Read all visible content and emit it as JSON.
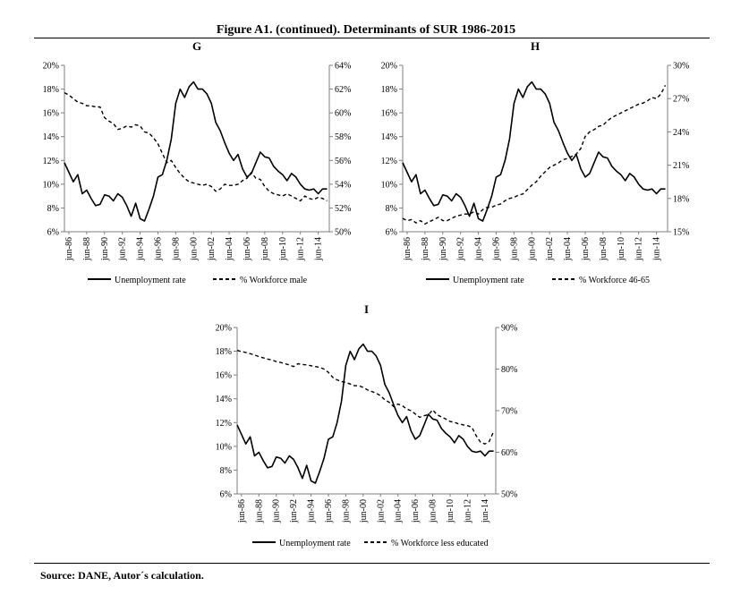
{
  "figure_title": "Figure A1. (continued). Determinants of SUR 1986-2015",
  "source": "Source: DANE, Autor´s calculation.",
  "colors": {
    "line": "#000000",
    "axis": "#7f7f7f",
    "background": "#ffffff"
  },
  "chart_data": [
    {
      "id": "G",
      "type": "line",
      "title": "G",
      "x_tick_labels": [
        "jun-86",
        "jun-88",
        "jun-90",
        "jun-92",
        "jun-94",
        "jun-96",
        "jun-98",
        "jun-00",
        "jun-02",
        "jun-04",
        "jun-06",
        "jun-08",
        "jun-10",
        "jun-12",
        "jun-14"
      ],
      "y_left": {
        "ylim": [
          6,
          20
        ],
        "ticks": [
          "6%",
          "8%",
          "10%",
          "12%",
          "14%",
          "16%",
          "18%",
          "20%"
        ]
      },
      "y_right": {
        "ylim": [
          50,
          64
        ],
        "ticks": [
          "50%",
          "52%",
          "54%",
          "56%",
          "58%",
          "60%",
          "62%",
          "64%"
        ]
      },
      "legend": [
        "Unemployment rate",
        "% Workforce male"
      ],
      "series": [
        {
          "name": "Unemployment rate",
          "axis": "left",
          "style": "solid",
          "x": [
            1986.0,
            1986.5,
            1987.0,
            1987.5,
            1988.0,
            1988.5,
            1989.0,
            1989.5,
            1990.0,
            1990.5,
            1991.0,
            1991.5,
            1992.0,
            1992.5,
            1993.0,
            1993.5,
            1994.0,
            1994.5,
            1995.0,
            1995.5,
            1996.0,
            1996.5,
            1997.0,
            1997.5,
            1998.0,
            1998.5,
            1999.0,
            1999.5,
            2000.0,
            2000.5,
            2001.0,
            2001.5,
            2002.0,
            2002.5,
            2003.0,
            2003.5,
            2004.0,
            2004.5,
            2005.0,
            2005.5,
            2006.0,
            2006.5,
            2007.0,
            2007.5,
            2008.0,
            2008.5,
            2009.0,
            2009.5,
            2010.0,
            2010.5,
            2011.0,
            2011.5,
            2012.0,
            2012.5,
            2013.0,
            2013.5,
            2014.0,
            2014.5,
            2015.0,
            2015.5
          ],
          "values": [
            11.8,
            11.0,
            10.2,
            10.8,
            9.2,
            9.5,
            8.8,
            8.2,
            8.3,
            9.1,
            9.0,
            8.6,
            9.2,
            8.9,
            8.2,
            7.3,
            8.4,
            7.1,
            6.9,
            7.9,
            9.0,
            10.6,
            10.8,
            12.0,
            13.8,
            16.8,
            18.0,
            17.3,
            18.2,
            18.6,
            18.0,
            18.0,
            17.6,
            16.8,
            15.2,
            14.5,
            13.5,
            12.6,
            12.0,
            12.5,
            11.3,
            10.6,
            10.9,
            11.8,
            12.7,
            12.3,
            12.2,
            11.5,
            11.1,
            10.8,
            10.3,
            10.9,
            10.6,
            10.0,
            9.6,
            9.5,
            9.6,
            9.2,
            9.6,
            9.6
          ]
        },
        {
          "name": "% Workforce male",
          "axis": "right",
          "style": "dashed",
          "x": [
            1986.0,
            1986.5,
            1987.0,
            1987.5,
            1988.0,
            1988.5,
            1989.0,
            1989.5,
            1990.0,
            1990.5,
            1991.0,
            1991.5,
            1992.0,
            1992.5,
            1993.0,
            1993.5,
            1994.0,
            1994.5,
            1995.0,
            1995.5,
            1996.0,
            1996.5,
            1997.0,
            1997.5,
            1998.0,
            1998.5,
            1999.0,
            1999.5,
            2000.0,
            2000.5,
            2001.0,
            2001.5,
            2002.0,
            2002.5,
            2003.0,
            2003.5,
            2004.0,
            2004.5,
            2005.0,
            2005.5,
            2006.0,
            2006.5,
            2007.0,
            2007.5,
            2008.0,
            2008.5,
            2009.0,
            2009.5,
            2010.0,
            2010.5,
            2011.0,
            2011.5,
            2012.0,
            2012.5,
            2013.0,
            2013.5,
            2014.0,
            2014.5,
            2015.0,
            2015.5
          ],
          "values": [
            61.7,
            61.5,
            61.2,
            60.9,
            60.8,
            60.6,
            60.6,
            60.5,
            60.5,
            59.6,
            59.3,
            59.1,
            58.6,
            58.7,
            58.9,
            58.8,
            59.0,
            58.9,
            58.4,
            58.3,
            57.9,
            57.4,
            56.6,
            55.8,
            56.0,
            55.4,
            54.9,
            54.5,
            54.2,
            54.1,
            54.0,
            53.9,
            54.0,
            53.8,
            53.4,
            53.6,
            54.0,
            53.9,
            53.9,
            54.0,
            54.3,
            54.5,
            55.0,
            54.5,
            54.4,
            53.8,
            53.4,
            53.2,
            53.1,
            53.0,
            53.2,
            53.0,
            52.8,
            52.6,
            53.0,
            52.8,
            52.7,
            52.9,
            52.8,
            52.6
          ]
        }
      ]
    },
    {
      "id": "H",
      "type": "line",
      "title": "H",
      "x_tick_labels": [
        "jun-86",
        "jun-88",
        "jun-90",
        "jun-92",
        "jun-94",
        "jun-96",
        "jun-98",
        "jun-00",
        "jun-02",
        "jun-04",
        "jun-06",
        "jun-08",
        "jun-10",
        "jun-12",
        "jun-14"
      ],
      "y_left": {
        "ylim": [
          6,
          20
        ],
        "ticks": [
          "6%",
          "8%",
          "10%",
          "12%",
          "14%",
          "16%",
          "18%",
          "20%"
        ]
      },
      "y_right": {
        "ylim": [
          15,
          30
        ],
        "ticks": [
          "15%",
          "18%",
          "21%",
          "24%",
          "27%",
          "30%"
        ]
      },
      "legend": [
        "Unemployment rate",
        "% Workforce 46-65"
      ],
      "series": [
        {
          "name": "Unemployment rate",
          "axis": "left",
          "style": "solid",
          "x": [
            1986.0,
            1986.5,
            1987.0,
            1987.5,
            1988.0,
            1988.5,
            1989.0,
            1989.5,
            1990.0,
            1990.5,
            1991.0,
            1991.5,
            1992.0,
            1992.5,
            1993.0,
            1993.5,
            1994.0,
            1994.5,
            1995.0,
            1995.5,
            1996.0,
            1996.5,
            1997.0,
            1997.5,
            1998.0,
            1998.5,
            1999.0,
            1999.5,
            2000.0,
            2000.5,
            2001.0,
            2001.5,
            2002.0,
            2002.5,
            2003.0,
            2003.5,
            2004.0,
            2004.5,
            2005.0,
            2005.5,
            2006.0,
            2006.5,
            2007.0,
            2007.5,
            2008.0,
            2008.5,
            2009.0,
            2009.5,
            2010.0,
            2010.5,
            2011.0,
            2011.5,
            2012.0,
            2012.5,
            2013.0,
            2013.5,
            2014.0,
            2014.5,
            2015.0,
            2015.5
          ],
          "values": [
            11.8,
            11.0,
            10.2,
            10.8,
            9.2,
            9.5,
            8.8,
            8.2,
            8.3,
            9.1,
            9.0,
            8.6,
            9.2,
            8.9,
            8.2,
            7.3,
            8.4,
            7.1,
            6.9,
            7.9,
            9.0,
            10.6,
            10.8,
            12.0,
            13.8,
            16.8,
            18.0,
            17.3,
            18.2,
            18.6,
            18.0,
            18.0,
            17.6,
            16.8,
            15.2,
            14.5,
            13.5,
            12.6,
            12.0,
            12.5,
            11.3,
            10.6,
            10.9,
            11.8,
            12.7,
            12.3,
            12.2,
            11.5,
            11.1,
            10.8,
            10.3,
            10.9,
            10.6,
            10.0,
            9.6,
            9.5,
            9.6,
            9.2,
            9.6,
            9.6
          ]
        },
        {
          "name": "% Workforce 46-65",
          "axis": "right",
          "style": "dashed",
          "x": [
            1986.0,
            1986.5,
            1987.0,
            1987.5,
            1988.0,
            1988.5,
            1989.0,
            1989.5,
            1990.0,
            1990.5,
            1991.0,
            1991.5,
            1992.0,
            1992.5,
            1993.0,
            1993.5,
            1994.0,
            1994.5,
            1995.0,
            1995.5,
            1996.0,
            1996.5,
            1997.0,
            1997.5,
            1998.0,
            1998.5,
            1999.0,
            1999.5,
            2000.0,
            2000.5,
            2001.0,
            2001.5,
            2002.0,
            2002.5,
            2003.0,
            2003.5,
            2004.0,
            2004.5,
            2005.0,
            2005.5,
            2006.0,
            2006.5,
            2007.0,
            2007.5,
            2008.0,
            2008.5,
            2009.0,
            2009.5,
            2010.0,
            2010.5,
            2011.0,
            2011.5,
            2012.0,
            2012.5,
            2013.0,
            2013.5,
            2014.0,
            2014.5,
            2015.0,
            2015.5
          ],
          "values": [
            16.2,
            16.0,
            16.1,
            15.8,
            16.0,
            15.7,
            15.9,
            16.1,
            16.3,
            16.0,
            16.0,
            16.2,
            16.4,
            16.5,
            16.6,
            16.6,
            16.8,
            16.6,
            17.0,
            17.2,
            17.2,
            17.4,
            17.5,
            17.8,
            18.0,
            18.1,
            18.3,
            18.4,
            18.8,
            19.2,
            19.5,
            20.0,
            20.4,
            20.8,
            21.0,
            21.2,
            21.5,
            21.6,
            21.8,
            22.0,
            22.5,
            23.6,
            24.0,
            24.2,
            24.5,
            24.6,
            25.0,
            25.3,
            25.5,
            25.7,
            25.9,
            26.1,
            26.3,
            26.5,
            26.6,
            26.8,
            27.1,
            27.0,
            27.4,
            28.2
          ]
        }
      ]
    },
    {
      "id": "I",
      "type": "line",
      "title": "I",
      "x_tick_labels": [
        "jun-86",
        "jun-88",
        "jun-90",
        "jun-92",
        "jun-94",
        "jun-96",
        "jun-98",
        "jun-00",
        "jun-02",
        "jun-04",
        "jun-06",
        "jun-08",
        "jun-10",
        "jun-12",
        "jun-14"
      ],
      "y_left": {
        "ylim": [
          6,
          20
        ],
        "ticks": [
          "6%",
          "8%",
          "10%",
          "12%",
          "14%",
          "16%",
          "18%",
          "20%"
        ]
      },
      "y_right": {
        "ylim": [
          50,
          90
        ],
        "ticks": [
          "50%",
          "60%",
          "70%",
          "80%",
          "90%"
        ]
      },
      "legend": [
        "Unemployment rate",
        "% Workforce less educated"
      ],
      "series": [
        {
          "name": "Unemployment rate",
          "axis": "left",
          "style": "solid",
          "x": [
            1986.0,
            1986.5,
            1987.0,
            1987.5,
            1988.0,
            1988.5,
            1989.0,
            1989.5,
            1990.0,
            1990.5,
            1991.0,
            1991.5,
            1992.0,
            1992.5,
            1993.0,
            1993.5,
            1994.0,
            1994.5,
            1995.0,
            1995.5,
            1996.0,
            1996.5,
            1997.0,
            1997.5,
            1998.0,
            1998.5,
            1999.0,
            1999.5,
            2000.0,
            2000.5,
            2001.0,
            2001.5,
            2002.0,
            2002.5,
            2003.0,
            2003.5,
            2004.0,
            2004.5,
            2005.0,
            2005.5,
            2006.0,
            2006.5,
            2007.0,
            2007.5,
            2008.0,
            2008.5,
            2009.0,
            2009.5,
            2010.0,
            2010.5,
            2011.0,
            2011.5,
            2012.0,
            2012.5,
            2013.0,
            2013.5,
            2014.0,
            2014.5,
            2015.0,
            2015.5
          ],
          "values": [
            11.8,
            11.0,
            10.2,
            10.8,
            9.2,
            9.5,
            8.8,
            8.2,
            8.3,
            9.1,
            9.0,
            8.6,
            9.2,
            8.9,
            8.2,
            7.3,
            8.4,
            7.1,
            6.9,
            7.9,
            9.0,
            10.6,
            10.8,
            12.0,
            13.8,
            16.8,
            18.0,
            17.3,
            18.2,
            18.6,
            18.0,
            18.0,
            17.6,
            16.8,
            15.2,
            14.5,
            13.5,
            12.6,
            12.0,
            12.5,
            11.3,
            10.6,
            10.9,
            11.8,
            12.7,
            12.3,
            12.2,
            11.5,
            11.1,
            10.8,
            10.3,
            10.9,
            10.6,
            10.0,
            9.6,
            9.5,
            9.6,
            9.2,
            9.6,
            9.6
          ]
        },
        {
          "name": "% Workforce less educated",
          "axis": "right",
          "style": "dashed",
          "x": [
            1986.0,
            1986.5,
            1987.0,
            1987.5,
            1988.0,
            1988.5,
            1989.0,
            1989.5,
            1990.0,
            1990.5,
            1991.0,
            1991.5,
            1992.0,
            1992.5,
            1993.0,
            1993.5,
            1994.0,
            1994.5,
            1995.0,
            1995.5,
            1996.0,
            1996.5,
            1997.0,
            1997.5,
            1998.0,
            1998.5,
            1999.0,
            1999.5,
            2000.0,
            2000.5,
            2001.0,
            2001.5,
            2002.0,
            2002.5,
            2003.0,
            2003.5,
            2004.0,
            2004.5,
            2005.0,
            2005.5,
            2006.0,
            2006.5,
            2007.0,
            2007.5,
            2008.0,
            2008.5,
            2009.0,
            2009.5,
            2010.0,
            2010.5,
            2011.0,
            2011.5,
            2012.0,
            2012.5,
            2013.0,
            2013.5,
            2014.0,
            2014.5,
            2015.0,
            2015.5
          ],
          "values": [
            84.5,
            84.2,
            84.0,
            83.7,
            83.4,
            83.0,
            82.7,
            82.4,
            82.2,
            81.8,
            81.6,
            81.3,
            81.0,
            80.6,
            81.3,
            81.1,
            81.0,
            80.8,
            80.6,
            80.4,
            80.0,
            79.2,
            78.0,
            77.4,
            77.0,
            76.8,
            76.4,
            76.0,
            76.0,
            75.6,
            75.0,
            74.6,
            74.2,
            73.6,
            72.6,
            72.0,
            71.0,
            71.6,
            71.2,
            70.4,
            70.0,
            69.2,
            68.4,
            68.8,
            69.0,
            70.2,
            69.0,
            68.5,
            68.0,
            67.4,
            67.2,
            66.8,
            66.6,
            66.4,
            66.0,
            64.0,
            62.4,
            62.0,
            62.6,
            65.0
          ]
        }
      ]
    }
  ]
}
